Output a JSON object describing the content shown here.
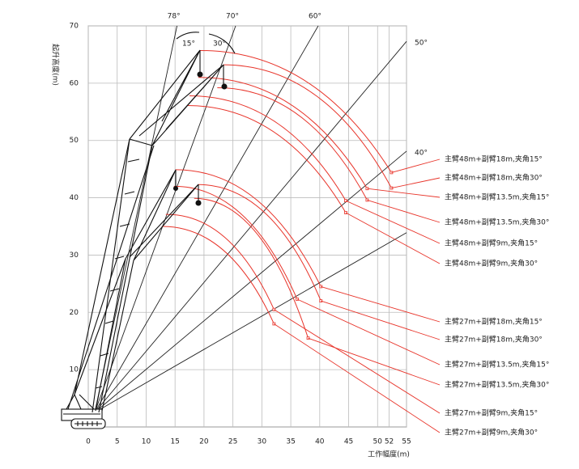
{
  "chart_data": {
    "type": "working-range",
    "xlabel": "工作幅度(m)",
    "ylabel": "起升高度(m)",
    "xlim": [
      0,
      55
    ],
    "ylim": [
      0,
      70
    ],
    "xticks": [
      0,
      5,
      10,
      15,
      20,
      25,
      30,
      35,
      40,
      45,
      50,
      52,
      55
    ],
    "yticks": [
      10,
      20,
      30,
      40,
      50,
      60,
      70
    ],
    "grid": true,
    "boom_angles": [
      {
        "value": 78,
        "label": "78°"
      },
      {
        "value": 70,
        "label": "70°"
      },
      {
        "value": 60,
        "label": "60°"
      },
      {
        "value": 50,
        "label": "50°"
      },
      {
        "value": 40,
        "label": "40°"
      },
      {
        "value": 30,
        "label": null
      }
    ],
    "annotations": [
      "15°",
      "30°"
    ],
    "curve_color": "#e8342a",
    "series": [
      {
        "name": "主臂48m+副臂18m,夹角15°",
        "x": [
          19.3,
          37.5,
          52.4
        ],
        "values": [
          65.7,
          60.4,
          44.4
        ]
      },
      {
        "name": "主臂48m+副臂18m,夹角30°",
        "x": [
          23.4,
          39.4,
          52.4
        ],
        "values": [
          63.2,
          57.8,
          41.7
        ]
      },
      {
        "name": "主臂48m+副臂13.5m,夹角15°",
        "x": [
          19,
          35.1,
          48.2
        ],
        "values": [
          61,
          56.2,
          41.6
        ]
      },
      {
        "name": "主臂48m+副臂13.5m,夹角30°",
        "x": [
          22.3,
          36.5,
          48.2
        ],
        "values": [
          59.2,
          54.3,
          39.6
        ]
      },
      {
        "name": "主臂48m+副臂9m,夹角15°",
        "x": [
          17.5,
          32.4,
          44.5
        ],
        "values": [
          57.8,
          53.2,
          39.5
        ]
      },
      {
        "name": "主臂48m+副臂9m,夹角30°",
        "x": [
          17.2,
          32.2,
          44.5
        ],
        "values": [
          56.1,
          51.4,
          37.4
        ]
      },
      {
        "name": "主臂27m+副臂18m,夹角15°",
        "x": [
          15.1,
          28.9,
          40.2
        ],
        "values": [
          44.9,
          39.8,
          24.5
        ]
      },
      {
        "name": "主臂27m+副臂18m,夹角30°",
        "x": [
          19,
          30.7,
          40.2
        ],
        "values": [
          42.3,
          37.2,
          22
        ]
      },
      {
        "name": "主臂27m+副臂13.5m,夹角15°",
        "x": [
          14.8,
          26.5,
          36.1
        ],
        "values": [
          42,
          37.1,
          22.3
        ]
      },
      {
        "name": "主臂27m+副臂13.5m,夹角30°",
        "x": [
          18.3,
          29.1,
          38
        ],
        "values": [
          39.9,
          33.8,
          15.5
        ]
      },
      {
        "name": "主臂27m+副臂9m,夹角15°",
        "x": [
          13.4,
          23.7,
          32.1
        ],
        "values": [
          37.1,
          33,
          20.5
        ]
      },
      {
        "name": "主臂27m+副臂9m,夹角30°",
        "x": [
          12.7,
          23.4,
          32.1
        ],
        "values": [
          35,
          30.8,
          18
        ]
      }
    ]
  }
}
